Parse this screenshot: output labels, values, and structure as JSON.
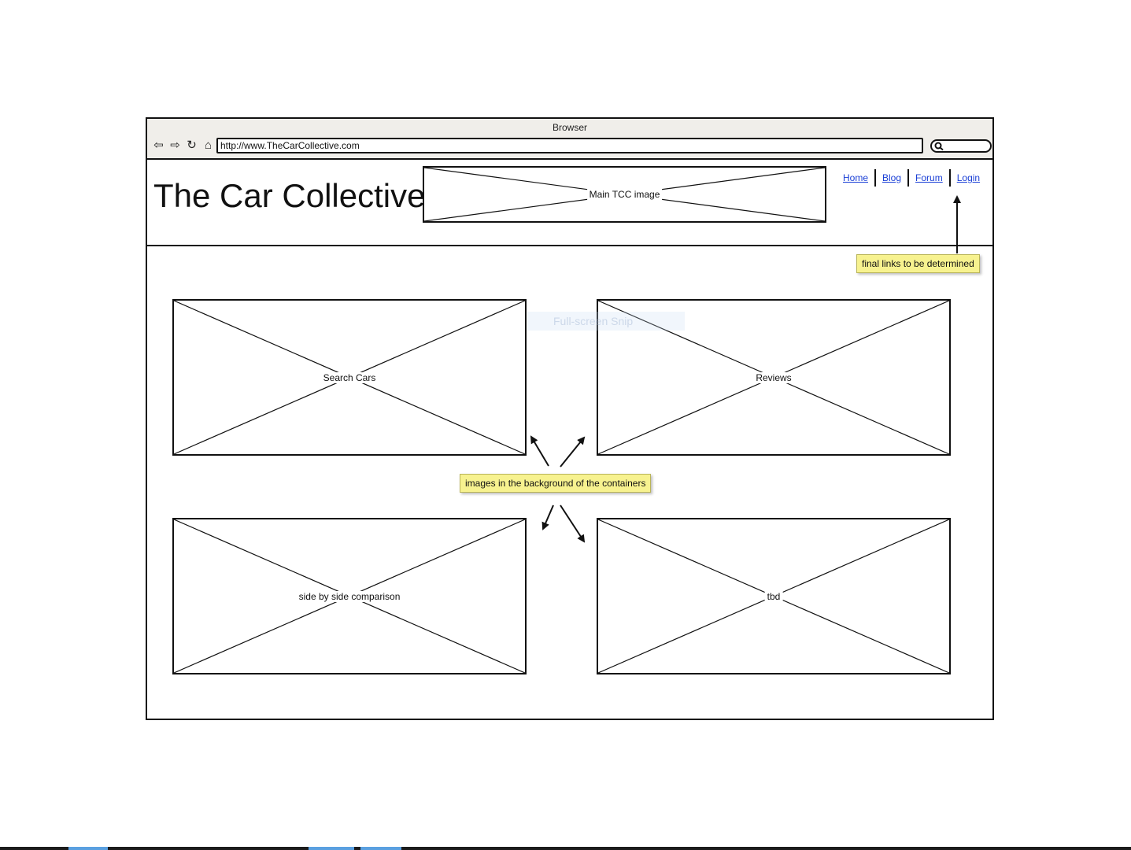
{
  "browser": {
    "title": "Browser",
    "url": "http://www.TheCarCollective.com",
    "nav_icons": [
      "back-arrow-icon",
      "forward-arrow-icon",
      "refresh-icon",
      "home-icon"
    ]
  },
  "site": {
    "title": "The Car Collective",
    "main_image_label": "Main TCC image",
    "nav_links": [
      "Home",
      "Blog",
      "Forum",
      "Login"
    ]
  },
  "tiles": [
    "Search Cars",
    "Reviews",
    "side by side comparison",
    "tbd"
  ],
  "notes": {
    "links_note": "final links to be determined",
    "images_note": "images in the background of the containers"
  },
  "overlay": {
    "snip_label": "Full-screen Snip"
  },
  "colors": {
    "note_yellow": "#f7f28f",
    "link_blue": "#1a3fd6",
    "chrome_bg": "#f0eeea"
  }
}
